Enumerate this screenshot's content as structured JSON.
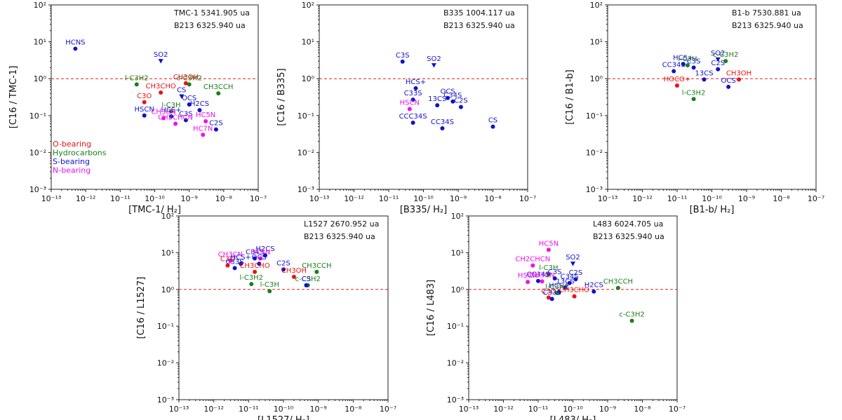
{
  "colors": {
    "O-bearing": "#ee1111",
    "Hydrocarbons": "#1a7f1a",
    "S-bearing": "#1111cc",
    "N-bearing": "#ee11ee",
    "refline": "#e02020"
  },
  "legend": {
    "items": [
      {
        "label": "O-bearing",
        "group": "O-bearing"
      },
      {
        "label": "Hydrocarbons",
        "group": "Hydrocarbons"
      },
      {
        "label": "S-bearing",
        "group": "S-bearing"
      },
      {
        "label": "N-bearing",
        "group": "N-bearing"
      }
    ]
  },
  "chart_data": [
    {
      "type": "scatter",
      "xlabel": "[TMC-1/ H₂]",
      "ylabel": "[C16 / TMC-1]",
      "xlim": [
        1e-13,
        1e-07
      ],
      "ylim": [
        0.001,
        100
      ],
      "xticks": [
        "10⁻¹³",
        "10⁻¹²",
        "10⁻¹¹",
        "10⁻¹⁰",
        "10⁻⁹",
        "10⁻⁸",
        "10⁻⁷"
      ],
      "yticks": [
        "10⁻³",
        "10⁻²",
        "10⁻¹",
        "10⁰",
        "10¹",
        "10²"
      ],
      "annotations": [
        "TMC-1 5341.905 ua",
        "B213 6325.940 ua"
      ],
      "reference_y": 1,
      "show_legend": true,
      "points": [
        {
          "label": "HCNS",
          "x": 5e-13,
          "y": 6.5,
          "group": "S-bearing",
          "marker": "o"
        },
        {
          "label": "SO2",
          "x": 1.5e-10,
          "y": 3.0,
          "group": "S-bearing",
          "marker": "v"
        },
        {
          "label": "l-C3H2",
          "x": 3e-11,
          "y": 0.7,
          "group": "Hydrocarbons",
          "marker": "o"
        },
        {
          "label": "CH3OH",
          "x": 8e-10,
          "y": 0.75,
          "group": "O-bearing",
          "marker": "o"
        },
        {
          "label": "c-C3H2",
          "x": 1e-09,
          "y": 0.7,
          "group": "Hydrocarbons",
          "marker": "o"
        },
        {
          "label": "CH3CHO",
          "x": 1.5e-10,
          "y": 0.42,
          "group": "O-bearing",
          "marker": "o"
        },
        {
          "label": "CS",
          "x": 6e-10,
          "y": 0.33,
          "group": "S-bearing",
          "marker": "v"
        },
        {
          "label": "CH3CCH",
          "x": 7e-09,
          "y": 0.4,
          "group": "Hydrocarbons",
          "marker": "o"
        },
        {
          "label": "C3O",
          "x": 5e-11,
          "y": 0.23,
          "group": "O-bearing",
          "marker": "o"
        },
        {
          "label": "OCS",
          "x": 1e-09,
          "y": 0.2,
          "group": "S-bearing",
          "marker": "o"
        },
        {
          "label": "l-C3H",
          "x": 3e-10,
          "y": 0.13,
          "group": "Hydrocarbons",
          "marker": "o"
        },
        {
          "label": "HSCN",
          "x": 5e-11,
          "y": 0.1,
          "group": "S-bearing",
          "marker": "o"
        },
        {
          "label": "HCS+",
          "x": 3e-10,
          "y": 0.095,
          "group": "S-bearing",
          "marker": "o"
        },
        {
          "label": "H2CS",
          "x": 2e-09,
          "y": 0.14,
          "group": "S-bearing",
          "marker": "o"
        },
        {
          "label": "CH3CN",
          "x": 1.8e-10,
          "y": 0.085,
          "group": "N-bearing",
          "marker": "o"
        },
        {
          "label": "HC5N",
          "x": 3e-09,
          "y": 0.07,
          "group": "N-bearing",
          "marker": "o"
        },
        {
          "label": "C3S",
          "x": 8e-10,
          "y": 0.075,
          "group": "S-bearing",
          "marker": "o"
        },
        {
          "label": "C2S",
          "x": 6e-09,
          "y": 0.042,
          "group": "S-bearing",
          "marker": "o"
        },
        {
          "label": "CH2CHCN",
          "x": 4e-10,
          "y": 0.06,
          "group": "N-bearing",
          "marker": "o"
        },
        {
          "label": "HC7N",
          "x": 2.5e-09,
          "y": 0.03,
          "group": "N-bearing",
          "marker": "o"
        }
      ]
    },
    {
      "type": "scatter",
      "xlabel": "[B335/ H₂]",
      "ylabel": "[C16 / B335]",
      "xlim": [
        1e-13,
        1e-07
      ],
      "ylim": [
        0.001,
        100
      ],
      "xticks": [
        "10⁻¹³",
        "10⁻¹²",
        "10⁻¹¹",
        "10⁻¹⁰",
        "10⁻⁹",
        "10⁻⁸",
        "10⁻⁷"
      ],
      "yticks": [
        "10⁻³",
        "10⁻²",
        "10⁻¹",
        "10⁰",
        "10¹",
        "10²"
      ],
      "annotations": [
        "B335 1004.117 ua",
        "B213 6325.940 ua"
      ],
      "reference_y": 1,
      "show_legend": false,
      "points": [
        {
          "label": "C3S",
          "x": 2.5e-11,
          "y": 2.9,
          "group": "S-bearing",
          "marker": "o"
        },
        {
          "label": "SO2",
          "x": 2e-10,
          "y": 2.3,
          "group": "S-bearing",
          "marker": "v"
        },
        {
          "label": "HCS+",
          "x": 6e-11,
          "y": 0.55,
          "group": "S-bearing",
          "marker": "o"
        },
        {
          "label": "C33S",
          "x": 5e-11,
          "y": 0.27,
          "group": "S-bearing",
          "marker": "o"
        },
        {
          "label": "OCS",
          "x": 5e-10,
          "y": 0.3,
          "group": "S-bearing",
          "marker": "o"
        },
        {
          "label": "C34S",
          "x": 7e-10,
          "y": 0.24,
          "group": "S-bearing",
          "marker": "o"
        },
        {
          "label": "HSCN",
          "x": 4e-11,
          "y": 0.15,
          "group": "N-bearing",
          "marker": "o"
        },
        {
          "label": "13CS",
          "x": 2.5e-10,
          "y": 0.19,
          "group": "S-bearing",
          "marker": "o"
        },
        {
          "label": "C2S",
          "x": 1.2e-09,
          "y": 0.17,
          "group": "S-bearing",
          "marker": "o"
        },
        {
          "label": "CCC34S",
          "x": 5e-11,
          "y": 0.064,
          "group": "S-bearing",
          "marker": "o"
        },
        {
          "label": "CC34S",
          "x": 3.5e-10,
          "y": 0.045,
          "group": "S-bearing",
          "marker": "o"
        },
        {
          "label": "CS",
          "x": 1e-08,
          "y": 0.05,
          "group": "S-bearing",
          "marker": "o"
        }
      ]
    },
    {
      "type": "scatter",
      "xlabel": "[B1-b/ H₂]",
      "ylabel": "[C16 / B1-b]",
      "xlim": [
        1e-13,
        1e-07
      ],
      "ylim": [
        0.001,
        100
      ],
      "xticks": [
        "10⁻¹³",
        "10⁻¹²",
        "10⁻¹¹",
        "10⁻¹⁰",
        "10⁻⁹",
        "10⁻⁸",
        "10⁻⁷"
      ],
      "yticks": [
        "10⁻³",
        "10⁻²",
        "10⁻¹",
        "10⁰",
        "10¹",
        "10²"
      ],
      "annotations": [
        "B1-b 7530.881 ua",
        "B213 6325.940 ua"
      ],
      "reference_y": 1,
      "show_legend": false,
      "points": [
        {
          "label": "SO2",
          "x": 1.5e-10,
          "y": 3.3,
          "group": "S-bearing",
          "marker": "v"
        },
        {
          "label": "c-C3H2",
          "x": 2.5e-10,
          "y": 3.0,
          "group": "Hydrocarbons",
          "marker": "o"
        },
        {
          "label": "HCS+",
          "x": 1.5e-11,
          "y": 2.5,
          "group": "S-bearing",
          "marker": "o"
        },
        {
          "label": "l-C3H",
          "x": 2e-11,
          "y": 2.3,
          "group": "Hydrocarbons",
          "marker": "o"
        },
        {
          "label": "C3S",
          "x": 3e-11,
          "y": 2.0,
          "group": "S-bearing",
          "marker": "o"
        },
        {
          "label": "C2S",
          "x": 1.5e-10,
          "y": 1.8,
          "group": "S-bearing",
          "marker": "o"
        },
        {
          "label": "CC34S",
          "x": 8e-12,
          "y": 1.6,
          "group": "S-bearing",
          "marker": "o"
        },
        {
          "label": "13CS",
          "x": 6e-11,
          "y": 0.95,
          "group": "S-bearing",
          "marker": "o"
        },
        {
          "label": "CH3OH",
          "x": 6e-10,
          "y": 0.95,
          "group": "O-bearing",
          "marker": "o"
        },
        {
          "label": "HOCO+",
          "x": 1e-11,
          "y": 0.65,
          "group": "O-bearing",
          "marker": "o"
        },
        {
          "label": "OCS",
          "x": 3e-10,
          "y": 0.6,
          "group": "S-bearing",
          "marker": "o"
        },
        {
          "label": "l-C3H2",
          "x": 3e-11,
          "y": 0.28,
          "group": "Hydrocarbons",
          "marker": "o"
        }
      ]
    },
    {
      "type": "scatter",
      "xlabel": "[L1527/ H₂]",
      "ylabel": "[C16 / L1527]",
      "xlim": [
        1e-13,
        1e-07
      ],
      "ylim": [
        0.001,
        100
      ],
      "xticks": [
        "10⁻¹³",
        "10⁻¹²",
        "10⁻¹¹",
        "10⁻¹⁰",
        "10⁻⁹",
        "10⁻⁸",
        "10⁻⁷"
      ],
      "yticks": [
        "10⁻³",
        "10⁻²",
        "10⁻¹",
        "10⁰",
        "10¹",
        "10²"
      ],
      "annotations": [
        "L1527 2670.952 ua",
        "B213 6325.940 ua"
      ],
      "reference_y": 1,
      "show_legend": false,
      "points": [
        {
          "label": "H2CS",
          "x": 3e-11,
          "y": 8.5,
          "group": "S-bearing",
          "marker": "o"
        },
        {
          "label": "C34S",
          "x": 1.5e-11,
          "y": 7.0,
          "group": "S-bearing",
          "marker": "o"
        },
        {
          "label": "HC5N",
          "x": 2.2e-11,
          "y": 7.0,
          "group": "N-bearing",
          "marker": "o"
        },
        {
          "label": "CH3CN",
          "x": 3e-12,
          "y": 6.0,
          "group": "N-bearing",
          "marker": "o"
        },
        {
          "label": "C3O",
          "x": 2.5e-12,
          "y": 4.5,
          "group": "O-bearing",
          "marker": "o"
        },
        {
          "label": "HCS+",
          "x": 6e-12,
          "y": 5.0,
          "group": "S-bearing",
          "marker": "o"
        },
        {
          "label": "OCS",
          "x": 2e-11,
          "y": 5.0,
          "group": "S-bearing",
          "marker": "o"
        },
        {
          "label": "C33S",
          "x": 4e-12,
          "y": 3.8,
          "group": "S-bearing",
          "marker": "o"
        },
        {
          "label": "C2S",
          "x": 1e-10,
          "y": 3.5,
          "group": "S-bearing",
          "marker": "o"
        },
        {
          "label": "CH3CHO",
          "x": 1.5e-11,
          "y": 3.0,
          "group": "O-bearing",
          "marker": "o"
        },
        {
          "label": "CH3OH",
          "x": 2e-10,
          "y": 2.2,
          "group": "O-bearing",
          "marker": "o"
        },
        {
          "label": "CH3CCH",
          "x": 9e-10,
          "y": 3.0,
          "group": "Hydrocarbons",
          "marker": "o"
        },
        {
          "label": "c-C3H2",
          "x": 5e-10,
          "y": 1.3,
          "group": "Hydrocarbons",
          "marker": "o"
        },
        {
          "label": "l-C3H2",
          "x": 1.2e-11,
          "y": 1.4,
          "group": "Hydrocarbons",
          "marker": "o"
        },
        {
          "label": "l-C3H",
          "x": 4e-11,
          "y": 0.9,
          "group": "Hydrocarbons",
          "marker": "o"
        },
        {
          "label": "CS",
          "x": 4.5e-10,
          "y": 1.3,
          "group": "S-bearing",
          "marker": "o"
        }
      ]
    },
    {
      "type": "scatter",
      "xlabel": "[L483/ H₂]",
      "ylabel": "[C16 / L483]",
      "xlim": [
        1e-13,
        1e-07
      ],
      "ylim": [
        0.001,
        100
      ],
      "xticks": [
        "10⁻¹³",
        "10⁻¹²",
        "10⁻¹¹",
        "10⁻¹⁰",
        "10⁻⁹",
        "10⁻⁸",
        "10⁻⁷"
      ],
      "yticks": [
        "10⁻³",
        "10⁻²",
        "10⁻¹",
        "10⁰",
        "10¹",
        "10²"
      ],
      "annotations": [
        "L483 6024.705 ua",
        "B213 6325.940 ua"
      ],
      "reference_y": 1,
      "show_legend": false,
      "points": [
        {
          "label": "HC5N",
          "x": 2e-11,
          "y": 12,
          "group": "N-bearing",
          "marker": "o"
        },
        {
          "label": "SO2",
          "x": 1e-10,
          "y": 5.0,
          "group": "S-bearing",
          "marker": "v"
        },
        {
          "label": "CH2CHCN",
          "x": 7e-12,
          "y": 4.5,
          "group": "N-bearing",
          "marker": "o"
        },
        {
          "label": "l-C3H",
          "x": 2e-11,
          "y": 2.6,
          "group": "Hydrocarbons",
          "marker": "o"
        },
        {
          "label": "C3S",
          "x": 3e-11,
          "y": 2.0,
          "group": "S-bearing",
          "marker": "o"
        },
        {
          "label": "C2S",
          "x": 1.2e-10,
          "y": 1.9,
          "group": "S-bearing",
          "marker": "o"
        },
        {
          "label": "CC34S",
          "x": 1e-11,
          "y": 1.7,
          "group": "S-bearing",
          "marker": "o"
        },
        {
          "label": "CH3CN",
          "x": 1.3e-11,
          "y": 1.65,
          "group": "N-bearing",
          "marker": "o"
        },
        {
          "label": "C34S",
          "x": 8e-11,
          "y": 1.5,
          "group": "S-bearing",
          "marker": "o"
        },
        {
          "label": "HSCN",
          "x": 5e-12,
          "y": 1.6,
          "group": "N-bearing",
          "marker": "o"
        },
        {
          "label": "13CS",
          "x": 6e-11,
          "y": 1.1,
          "group": "S-bearing",
          "marker": "o"
        },
        {
          "label": "CH3CCH",
          "x": 2e-09,
          "y": 1.1,
          "group": "Hydrocarbons",
          "marker": "o"
        },
        {
          "label": "HCS+",
          "x": 4e-11,
          "y": 0.85,
          "group": "S-bearing",
          "marker": "o"
        },
        {
          "label": "H2CS",
          "x": 4e-10,
          "y": 0.88,
          "group": "S-bearing",
          "marker": "o"
        },
        {
          "label": "l-C3H2",
          "x": 3.5e-11,
          "y": 0.8,
          "group": "Hydrocarbons",
          "marker": "o"
        },
        {
          "label": "CH3CHO",
          "x": 1.1e-10,
          "y": 0.65,
          "group": "O-bearing",
          "marker": "o"
        },
        {
          "label": "C3O",
          "x": 2e-11,
          "y": 0.6,
          "group": "O-bearing",
          "marker": "o"
        },
        {
          "label": "C33S",
          "x": 2.5e-11,
          "y": 0.55,
          "group": "S-bearing",
          "marker": "o"
        },
        {
          "label": "c-C3H2",
          "x": 5e-09,
          "y": 0.14,
          "group": "Hydrocarbons",
          "marker": "o"
        }
      ]
    }
  ]
}
